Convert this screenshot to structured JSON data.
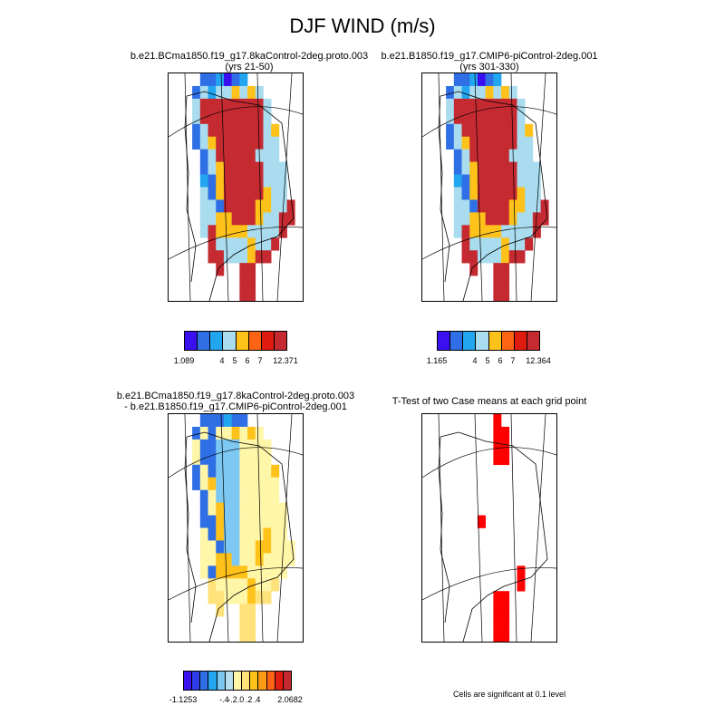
{
  "title": "DJF WIND (m/s)",
  "panels": [
    {
      "title_line1": "b.e21.BCma1850.f19_g17.8kaControl-2deg.proto.003",
      "title_line2": "(yrs 21-50)"
    },
    {
      "title_line1": "b.e21.B1850.f19_g17.CMIP6-piControl-2deg.001",
      "title_line2": "(yrs 301-330)"
    },
    {
      "title_line1": "b.e21.BCma1850.f19_g17.8kaControl-2deg.proto.003",
      "title_line2": "- b.e21.B1850.f19_g17.CMIP6-piControl-2deg.001"
    },
    {
      "title_line1": "T-Test of two Case means at each grid point",
      "title_line2": ""
    }
  ],
  "colorbars": [
    {
      "colors": [
        "#3a10f0",
        "#2e6fe6",
        "#22a6f0",
        "#a9dcee",
        "#ffc21a",
        "#ff6414",
        "#e01c10",
        "#c42a30"
      ],
      "labels": [
        "1.089",
        "4",
        "5",
        "6",
        "7",
        "12.371"
      ]
    },
    {
      "colors": [
        "#3a10f0",
        "#2e6fe6",
        "#22a6f0",
        "#a9dcee",
        "#ffc21a",
        "#ff6414",
        "#e01c10",
        "#c42a30"
      ],
      "labels": [
        "1.165",
        "4",
        "5",
        "6",
        "7",
        "12.364"
      ]
    },
    {
      "colors": [
        "#3a10f0",
        "#2f3ce8",
        "#2e6fe6",
        "#22a6f0",
        "#7cc8f2",
        "#b6e0ef",
        "#fff6a8",
        "#ffe27a",
        "#ffc21a",
        "#ff9a14",
        "#ff6414",
        "#e01c10",
        "#c42a30"
      ],
      "labels": [
        "-1.1253",
        "-.4",
        "-.2",
        ".0",
        ".2",
        ".4",
        "2.0682"
      ]
    }
  ],
  "significance_note": "Cells are significant at 0.1 level",
  "colors": {
    "significant": "#ff0000"
  }
}
